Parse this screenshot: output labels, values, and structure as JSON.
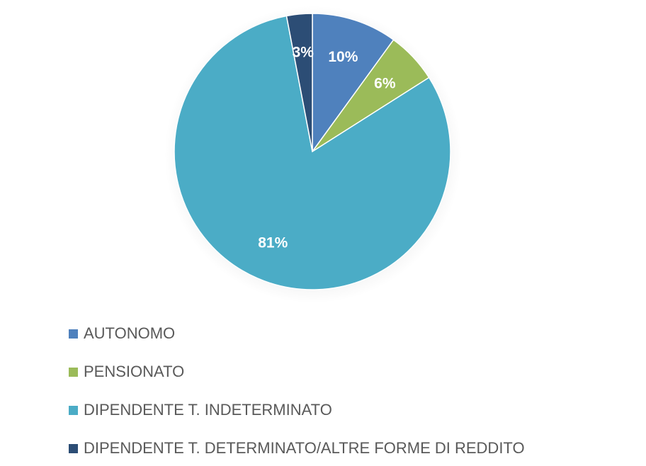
{
  "chart_data": {
    "type": "pie",
    "title": "",
    "legend_position": "bottom-left",
    "start_angle_deg": 0,
    "categories": [
      "AUTONOMO",
      "PENSIONATO",
      "DIPENDENTE T. INDETERMINATO",
      "DIPENDENTE T. DETERMINATO/ALTRE FORME DI REDDITO"
    ],
    "values": [
      10,
      6,
      81,
      3
    ],
    "labels": [
      "10%",
      "6%",
      "81%",
      "3%"
    ],
    "colors": [
      "#4F81BD",
      "#9BBB59",
      "#4BACC6",
      "#2C4D75"
    ]
  }
}
